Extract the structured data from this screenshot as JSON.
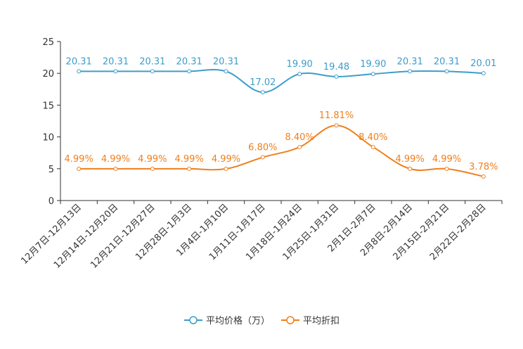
{
  "chart_data": {
    "type": "line",
    "title": "",
    "xlabel": "",
    "ylabel": "",
    "ylim": [
      0,
      25
    ],
    "yticks": [
      0,
      5,
      10,
      15,
      20,
      25
    ],
    "grid": false,
    "legend_position": "bottom-center",
    "categories": [
      "12月7日-12月13日",
      "12月14日-12月20日",
      "12月21日-12月27日",
      "12月28日-1月3日",
      "1月4日-1月10日",
      "1月11日-1月17日",
      "1月18日-1月24日",
      "1月25日-1月31日",
      "2月1日-2月7日",
      "2月8日-2月14日",
      "2月15日-2月21日",
      "2月22日-2月28日"
    ],
    "series": [
      {
        "name": "平均价格（万）",
        "color": "#3d9dcb",
        "values": [
          20.31,
          20.31,
          20.31,
          20.31,
          20.31,
          17.02,
          19.9,
          19.48,
          19.9,
          20.31,
          20.31,
          20.01
        ],
        "labels": [
          "20.31",
          "20.31",
          "20.31",
          "20.31",
          "20.31",
          "17.02",
          "19.90",
          "19.48",
          "19.90",
          "20.31",
          "20.31",
          "20.01"
        ]
      },
      {
        "name": "平均折扣",
        "color": "#f07f1b",
        "values": [
          4.99,
          4.99,
          4.99,
          4.99,
          4.99,
          6.8,
          8.4,
          11.81,
          8.4,
          4.99,
          4.99,
          3.78
        ],
        "labels": [
          "4.99%",
          "4.99%",
          "4.99%",
          "4.99%",
          "4.99%",
          "6.80%",
          "8.40%",
          "11.81%",
          "8.40%",
          "4.99%",
          "4.99%",
          "3.78%"
        ]
      }
    ]
  }
}
